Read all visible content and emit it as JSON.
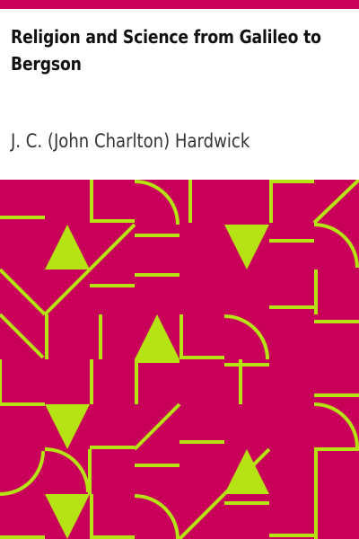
{
  "book": {
    "title": "Religion and Science from Galileo to Bergson",
    "author": "J. C. (John Charlton) Hardwick"
  },
  "colors": {
    "accent_bar": "#c8005a",
    "pattern_background": "#c8005a",
    "pattern_foreground": "#b6e314",
    "title_text": "#111111",
    "author_text": "#333333"
  }
}
